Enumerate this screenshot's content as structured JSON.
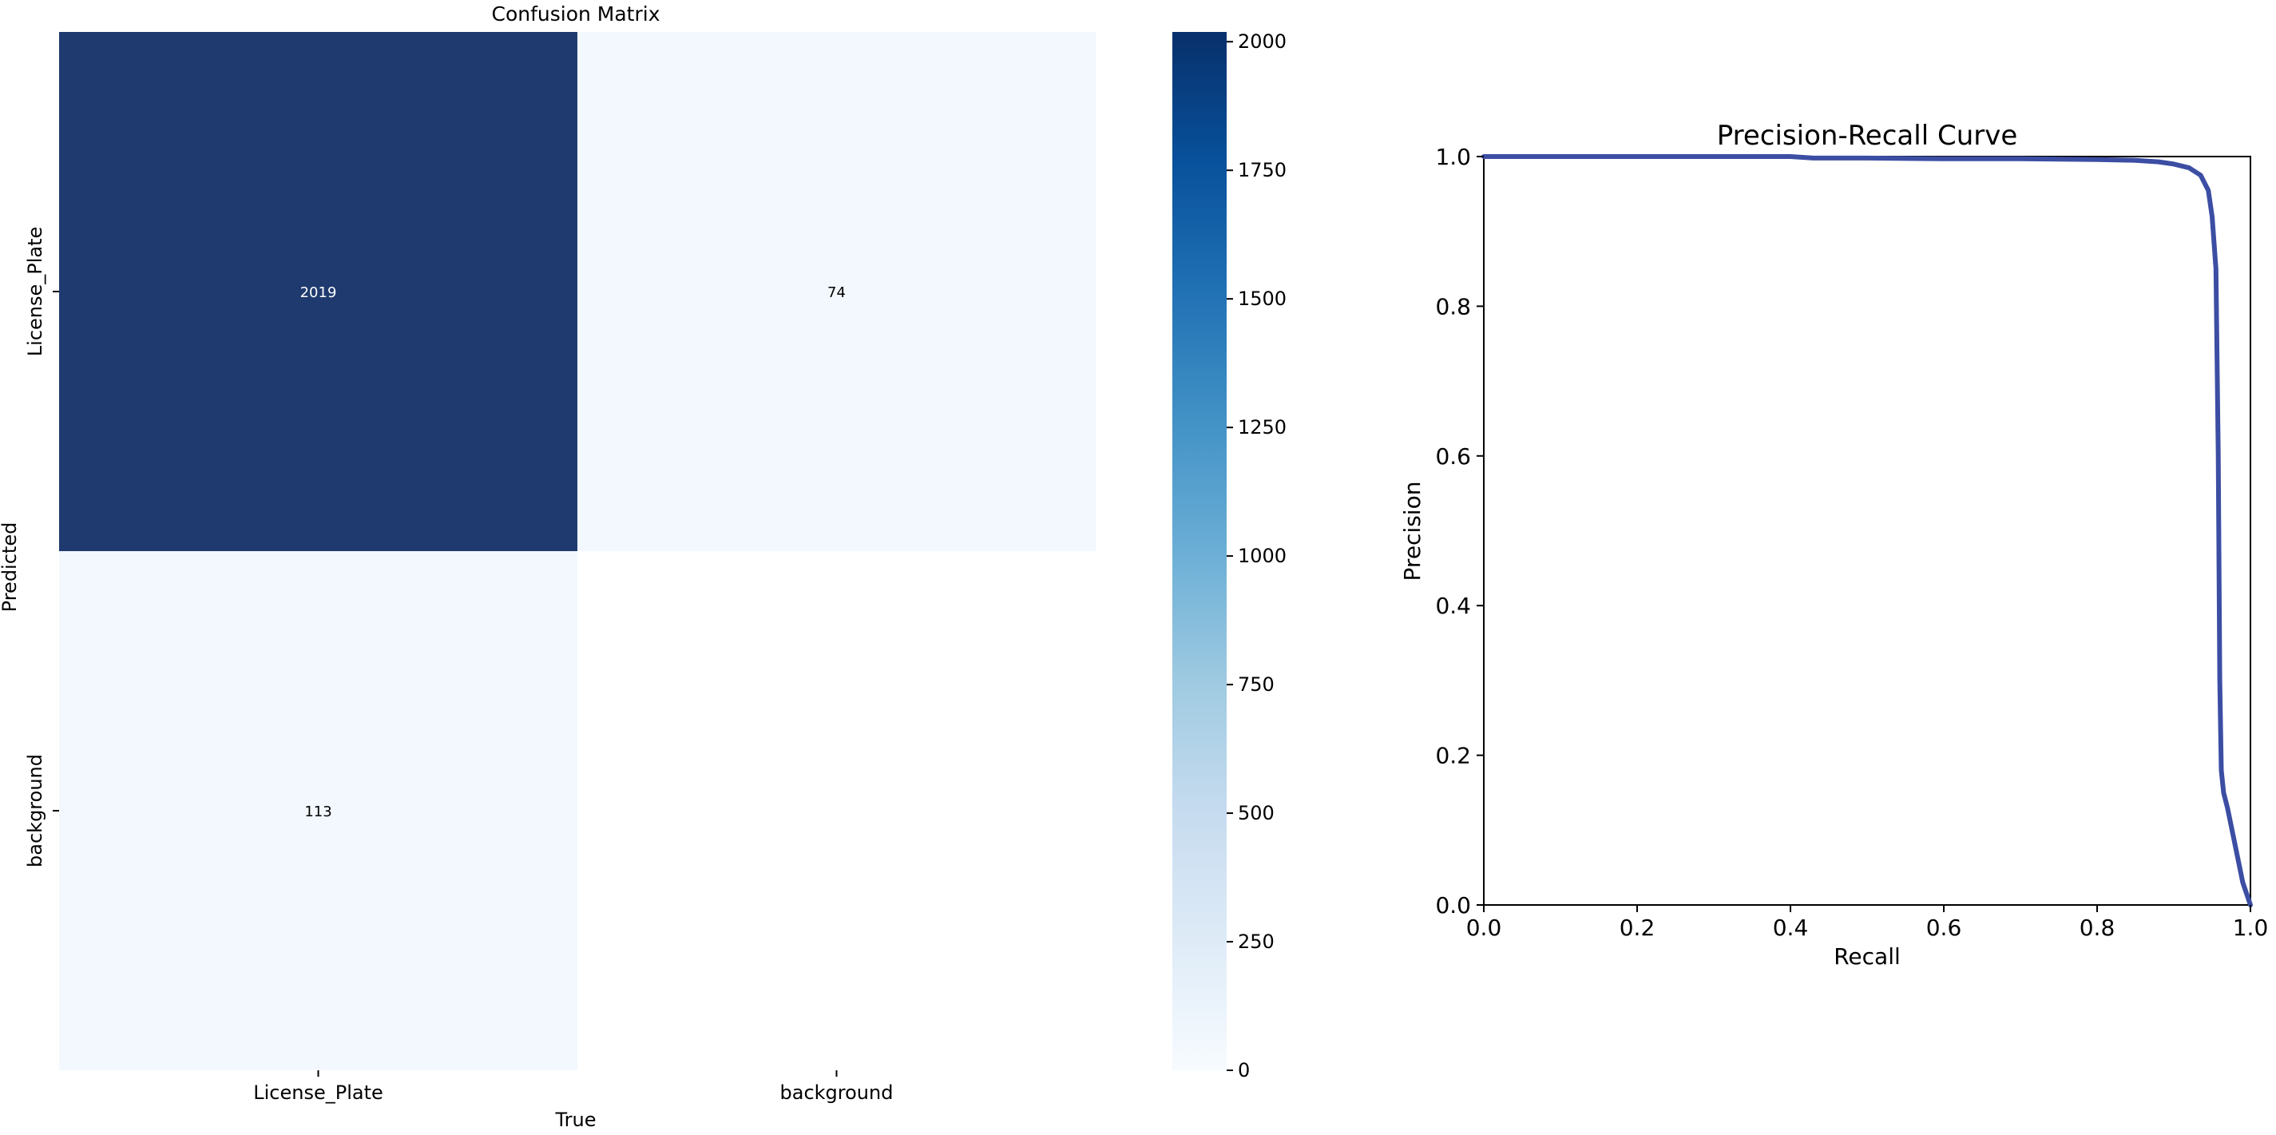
{
  "chart_data": [
    {
      "type": "heatmap",
      "title": "Confusion Matrix",
      "xlabel": "True",
      "ylabel": "Predicted",
      "x_categories": [
        "License_Plate",
        "background"
      ],
      "y_categories": [
        "License_Plate",
        "background"
      ],
      "matrix": [
        [
          2019,
          74
        ],
        [
          113,
          null
        ]
      ],
      "cell_labels": [
        [
          "2019",
          "74"
        ],
        [
          "113",
          ""
        ]
      ],
      "colormap": "Blues",
      "colorbar": {
        "range": [
          0,
          2019
        ],
        "ticks": [
          0,
          250,
          500,
          750,
          1000,
          1250,
          1500,
          1750,
          2000
        ],
        "tick_labels": [
          "0",
          "250",
          "500",
          "750",
          "1000",
          "1250",
          "1500",
          "1750",
          "2000"
        ]
      },
      "colors": {
        "max": "#08306b",
        "high": "#1f3a6e",
        "low": "#f2f8fd",
        "empty": "#ffffff"
      }
    },
    {
      "type": "line",
      "title": "Precision-Recall Curve",
      "xlabel": "Recall",
      "ylabel": "Precision",
      "xlim": [
        0,
        1
      ],
      "ylim": [
        0,
        1
      ],
      "xticks": [
        "0.0",
        "0.2",
        "0.4",
        "0.6",
        "0.8",
        "1.0"
      ],
      "yticks": [
        "0.0",
        "0.2",
        "0.4",
        "0.6",
        "0.8",
        "1.0"
      ],
      "grid": false,
      "line_color": "#3c4ea3",
      "series": [
        {
          "x": [
            0.0,
            0.1,
            0.2,
            0.3,
            0.4,
            0.43,
            0.5,
            0.6,
            0.7,
            0.8,
            0.85,
            0.88,
            0.9,
            0.92,
            0.935,
            0.945,
            0.95,
            0.955,
            0.958,
            0.96,
            0.962,
            0.965,
            0.97,
            0.98,
            0.99,
            1.0
          ],
          "y": [
            1.0,
            1.0,
            1.0,
            1.0,
            1.0,
            0.998,
            0.998,
            0.997,
            0.997,
            0.996,
            0.995,
            0.993,
            0.99,
            0.985,
            0.975,
            0.955,
            0.92,
            0.85,
            0.6,
            0.3,
            0.18,
            0.15,
            0.13,
            0.08,
            0.03,
            0.0
          ]
        }
      ]
    }
  ]
}
